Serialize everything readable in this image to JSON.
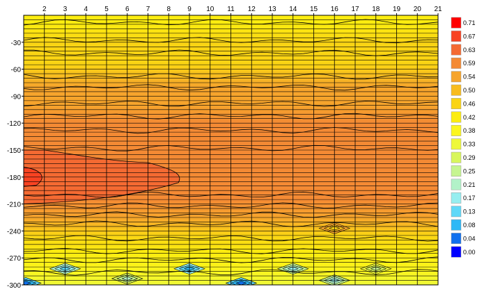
{
  "chart_data": {
    "type": "heatmap",
    "title": "",
    "xlabel": "",
    "ylabel": "",
    "x_ticks": [
      2,
      3,
      4,
      5,
      6,
      7,
      8,
      9,
      10,
      11,
      12,
      13,
      14,
      15,
      16,
      17,
      18,
      19,
      20,
      21
    ],
    "x_tick_labels": [
      "2",
      "3",
      "4",
      "5",
      "6",
      "7",
      "8",
      "9",
      "10",
      "11",
      "12",
      "13",
      "14",
      "15",
      "16",
      "17",
      "18",
      "19",
      "20",
      "21"
    ],
    "xlim": [
      1,
      21
    ],
    "y_ticks": [
      -30,
      -60,
      -90,
      -120,
      -150,
      -180,
      -210,
      -240,
      -270,
      -300
    ],
    "y_tick_labels": [
      "-30",
      "-60",
      -90,
      "-120",
      "-150",
      "-180",
      "-210",
      "-240",
      "-270",
      "-300"
    ],
    "ylim": [
      -300,
      0
    ],
    "grid": true,
    "colorbar": {
      "labels": [
        "0.71",
        "0.67",
        "0.63",
        "0.59",
        "0.54",
        "0.50",
        "0.46",
        "0.42",
        "0.38",
        "0.33",
        "0.29",
        "0.25",
        "0.21",
        "0.17",
        "0.13",
        "0.08",
        "0.04",
        "0.00"
      ],
      "values": [
        0.71,
        0.67,
        0.63,
        0.59,
        0.54,
        0.5,
        0.46,
        0.42,
        0.38,
        0.33,
        0.29,
        0.25,
        0.21,
        0.17,
        0.13,
        0.08,
        0.04,
        0.0
      ],
      "colors": [
        "#ff0000",
        "#f84322",
        "#f46a32",
        "#f48a34",
        "#f6a42c",
        "#f8bc1e",
        "#fad414",
        "#fcec10",
        "#fbf61e",
        "#eef83a",
        "#d8f65c",
        "#c6f590",
        "#b2f2c8",
        "#96eef0",
        "#5fd8f8",
        "#2eb8f6",
        "#1070ee",
        "#0000ff"
      ]
    },
    "depth_profile": [
      {
        "y": -10,
        "value": 0.41
      },
      {
        "y": -30,
        "value": 0.44
      },
      {
        "y": -55,
        "value": 0.47
      },
      {
        "y": -80,
        "value": 0.52
      },
      {
        "y": -100,
        "value": 0.55
      },
      {
        "y": -120,
        "value": 0.58
      },
      {
        "y": -150,
        "value": 0.59
      },
      {
        "y": -180,
        "value": 0.6
      },
      {
        "y": -205,
        "value": 0.57
      },
      {
        "y": -225,
        "value": 0.52
      },
      {
        "y": -245,
        "value": 0.46
      },
      {
        "y": -265,
        "value": 0.42
      },
      {
        "y": -285,
        "value": 0.37
      },
      {
        "y": -300,
        "value": 0.33
      }
    ],
    "high_region": {
      "x": [
        1,
        8
      ],
      "y": [
        -210,
        -150
      ],
      "value": 0.63
    },
    "spots": [
      {
        "x": 3,
        "y": -282,
        "value": 0.13
      },
      {
        "x": 9,
        "y": -282,
        "value": 0.08
      },
      {
        "x": 14,
        "y": -282,
        "value": 0.17
      },
      {
        "x": 18,
        "y": -282,
        "value": 0.25
      },
      {
        "x": 6,
        "y": -293,
        "value": 0.21
      },
      {
        "x": 16,
        "y": -295,
        "value": 0.17
      },
      {
        "x": 11.5,
        "y": -298,
        "value": 0.04
      },
      {
        "x": 1.1,
        "y": -298,
        "value": 0.04
      },
      {
        "x": 16,
        "y": -237,
        "value": 0.46
      }
    ]
  }
}
